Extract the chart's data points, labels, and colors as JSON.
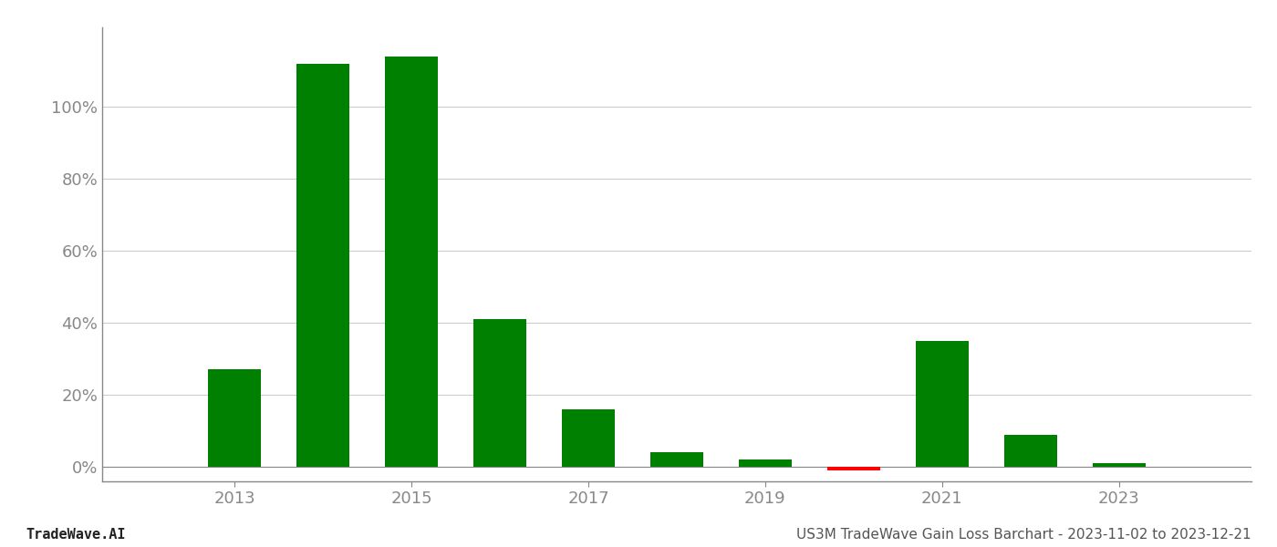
{
  "years": [
    2013,
    2014,
    2015,
    2016,
    2017,
    2018,
    2019,
    2020,
    2021,
    2022,
    2023
  ],
  "values": [
    0.27,
    1.12,
    1.14,
    0.41,
    0.16,
    0.04,
    0.02,
    -0.01,
    0.35,
    0.09,
    0.01
  ],
  "bar_colors": [
    "#008000",
    "#008000",
    "#008000",
    "#008000",
    "#008000",
    "#008000",
    "#008000",
    "#ff0000",
    "#008000",
    "#008000",
    "#008000"
  ],
  "footer_left": "TradeWave.AI",
  "footer_right": "US3M TradeWave Gain Loss Barchart - 2023-11-02 to 2023-12-21",
  "ytick_labels": [
    "0%",
    "20%",
    "40%",
    "60%",
    "80%",
    "100%"
  ],
  "ytick_values": [
    0.0,
    0.2,
    0.4,
    0.6,
    0.8,
    1.0
  ],
  "ylim_min": -0.04,
  "ylim_max": 1.22,
  "background_color": "#ffffff",
  "grid_color": "#cccccc",
  "bar_width": 0.6,
  "x_tick_positions": [
    2013,
    2015,
    2017,
    2019,
    2021,
    2023
  ],
  "xlim_min": 2011.5,
  "xlim_max": 2024.5,
  "footer_fontsize": 11,
  "tick_fontsize": 13,
  "tick_color": "#888888",
  "spine_color": "#888888"
}
